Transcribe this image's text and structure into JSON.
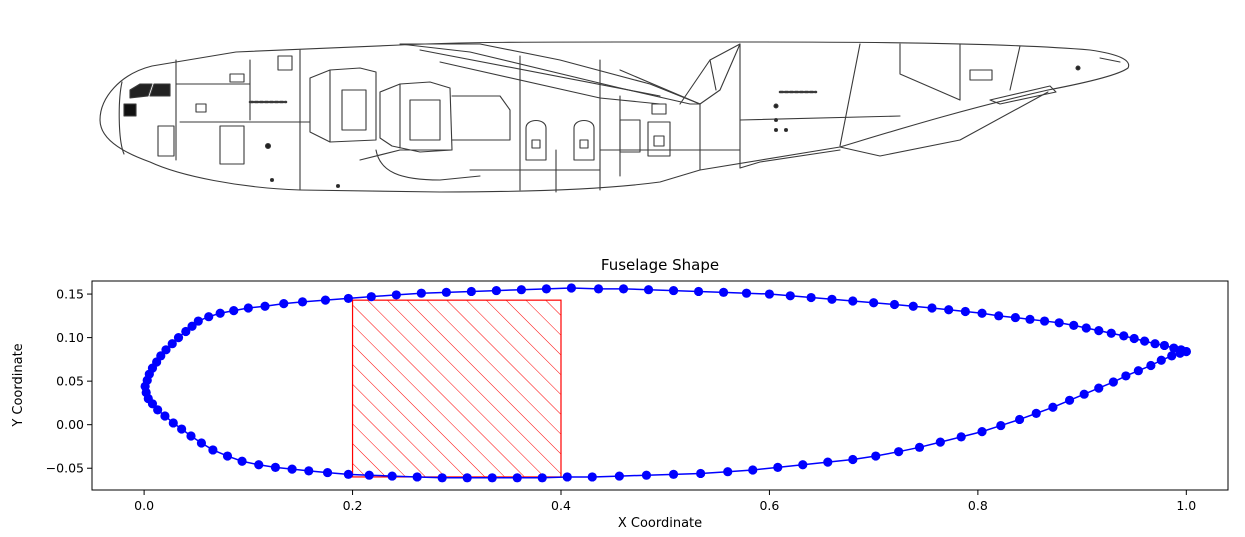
{
  "chart_data": {
    "type": "line",
    "title": "Fuselage Shape",
    "xlabel": "X Coordinate",
    "ylabel": "Y Coordinate",
    "xlim": [
      -0.05,
      1.04
    ],
    "ylim": [
      -0.075,
      0.165
    ],
    "xticks": [
      0.0,
      0.2,
      0.4,
      0.6,
      0.8,
      1.0
    ],
    "xtick_labels": [
      "0.0",
      "0.2",
      "0.4",
      "0.6",
      "0.8",
      "1.0"
    ],
    "yticks": [
      -0.05,
      0.0,
      0.05,
      0.1,
      0.15
    ],
    "ytick_labels": [
      "−0.05",
      "0.00",
      "0.05",
      "0.10",
      "0.15"
    ],
    "grid": false,
    "legend": false,
    "series": [
      {
        "color": "#0000ff",
        "marker": "circle",
        "points": [
          [
            1.0,
            0.084
          ],
          [
            0.995,
            0.086
          ],
          [
            0.988,
            0.088
          ],
          [
            0.979,
            0.091
          ],
          [
            0.97,
            0.093
          ],
          [
            0.96,
            0.096
          ],
          [
            0.95,
            0.099
          ],
          [
            0.94,
            0.102
          ],
          [
            0.928,
            0.105
          ],
          [
            0.916,
            0.108
          ],
          [
            0.904,
            0.111
          ],
          [
            0.892,
            0.114
          ],
          [
            0.878,
            0.117
          ],
          [
            0.864,
            0.119
          ],
          [
            0.85,
            0.121
          ],
          [
            0.836,
            0.123
          ],
          [
            0.82,
            0.125
          ],
          [
            0.804,
            0.128
          ],
          [
            0.788,
            0.13
          ],
          [
            0.772,
            0.132
          ],
          [
            0.756,
            0.134
          ],
          [
            0.738,
            0.136
          ],
          [
            0.72,
            0.138
          ],
          [
            0.7,
            0.14
          ],
          [
            0.68,
            0.142
          ],
          [
            0.66,
            0.144
          ],
          [
            0.64,
            0.146
          ],
          [
            0.62,
            0.148
          ],
          [
            0.6,
            0.15
          ],
          [
            0.578,
            0.151
          ],
          [
            0.556,
            0.152
          ],
          [
            0.532,
            0.153
          ],
          [
            0.508,
            0.154
          ],
          [
            0.484,
            0.155
          ],
          [
            0.46,
            0.156
          ],
          [
            0.436,
            0.156
          ],
          [
            0.41,
            0.157
          ],
          [
            0.386,
            0.156
          ],
          [
            0.362,
            0.155
          ],
          [
            0.338,
            0.154
          ],
          [
            0.314,
            0.153
          ],
          [
            0.29,
            0.152
          ],
          [
            0.266,
            0.151
          ],
          [
            0.242,
            0.149
          ],
          [
            0.218,
            0.147
          ],
          [
            0.196,
            0.145
          ],
          [
            0.174,
            0.143
          ],
          [
            0.152,
            0.141
          ],
          [
            0.134,
            0.139
          ],
          [
            0.116,
            0.136
          ],
          [
            0.1,
            0.134
          ],
          [
            0.086,
            0.131
          ],
          [
            0.073,
            0.128
          ],
          [
            0.062,
            0.124
          ],
          [
            0.052,
            0.119
          ],
          [
            0.046,
            0.113
          ],
          [
            0.04,
            0.107
          ],
          [
            0.033,
            0.1
          ],
          [
            0.027,
            0.093
          ],
          [
            0.021,
            0.086
          ],
          [
            0.016,
            0.079
          ],
          [
            0.012,
            0.072
          ],
          [
            0.008,
            0.065
          ],
          [
            0.005,
            0.058
          ],
          [
            0.003,
            0.051
          ],
          [
            0.001,
            0.044
          ],
          [
            0.002,
            0.037
          ],
          [
            0.004,
            0.03
          ],
          [
            0.008,
            0.024
          ],
          [
            0.013,
            0.017
          ],
          [
            0.02,
            0.01
          ],
          [
            0.028,
            0.002
          ],
          [
            0.036,
            -0.005
          ],
          [
            0.045,
            -0.013
          ],
          [
            0.055,
            -0.021
          ],
          [
            0.066,
            -0.029
          ],
          [
            0.08,
            -0.036
          ],
          [
            0.094,
            -0.042
          ],
          [
            0.11,
            -0.046
          ],
          [
            0.126,
            -0.049
          ],
          [
            0.142,
            -0.051
          ],
          [
            0.158,
            -0.053
          ],
          [
            0.176,
            -0.055
          ],
          [
            0.196,
            -0.057
          ],
          [
            0.216,
            -0.058
          ],
          [
            0.238,
            -0.059
          ],
          [
            0.262,
            -0.06
          ],
          [
            0.286,
            -0.061
          ],
          [
            0.31,
            -0.061
          ],
          [
            0.334,
            -0.061
          ],
          [
            0.358,
            -0.061
          ],
          [
            0.382,
            -0.061
          ],
          [
            0.406,
            -0.06
          ],
          [
            0.43,
            -0.06
          ],
          [
            0.456,
            -0.059
          ],
          [
            0.482,
            -0.058
          ],
          [
            0.508,
            -0.057
          ],
          [
            0.534,
            -0.056
          ],
          [
            0.56,
            -0.054
          ],
          [
            0.584,
            -0.052
          ],
          [
            0.608,
            -0.049
          ],
          [
            0.632,
            -0.046
          ],
          [
            0.656,
            -0.043
          ],
          [
            0.68,
            -0.04
          ],
          [
            0.702,
            -0.036
          ],
          [
            0.724,
            -0.031
          ],
          [
            0.744,
            -0.026
          ],
          [
            0.764,
            -0.02
          ],
          [
            0.784,
            -0.014
          ],
          [
            0.804,
            -0.008
          ],
          [
            0.822,
            -0.001
          ],
          [
            0.84,
            0.006
          ],
          [
            0.856,
            0.013
          ],
          [
            0.872,
            0.02
          ],
          [
            0.888,
            0.028
          ],
          [
            0.902,
            0.035
          ],
          [
            0.916,
            0.042
          ],
          [
            0.93,
            0.049
          ],
          [
            0.942,
            0.056
          ],
          [
            0.954,
            0.062
          ],
          [
            0.966,
            0.068
          ],
          [
            0.976,
            0.074
          ],
          [
            0.986,
            0.079
          ],
          [
            0.994,
            0.082
          ],
          [
            1.0,
            0.084
          ]
        ]
      }
    ],
    "highlight_region": {
      "x": [
        0.2,
        0.4
      ],
      "y": [
        -0.06,
        0.143
      ],
      "color": "#ff0000",
      "fill": "hatched"
    }
  },
  "illustration": {
    "name": "transport aircraft side view line drawing"
  }
}
